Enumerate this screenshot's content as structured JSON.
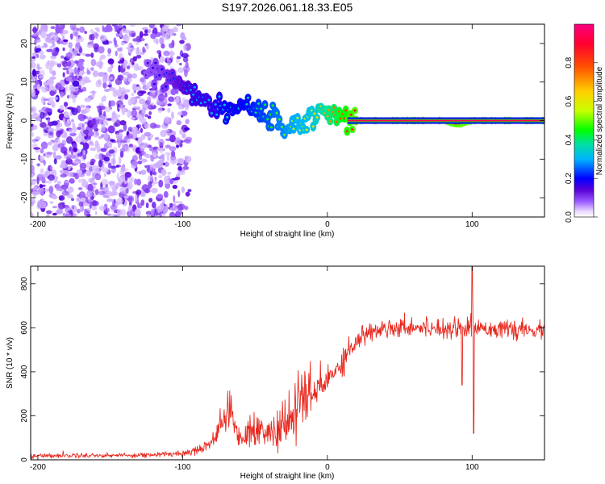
{
  "title": "S197.2026.061.18.33.E05",
  "chart_data": [
    {
      "type": "heatmap",
      "xlabel": "Height of straight line (km)",
      "ylabel": "Frequency (Hz)",
      "xlim": [
        -205,
        150
      ],
      "ylim": [
        -25,
        25
      ],
      "xticks": [
        -200,
        -100,
        0,
        100
      ],
      "yticks": [
        -20,
        -10,
        0,
        10,
        20
      ],
      "colorbar": {
        "label": "Normalized spectral amplitude",
        "range": [
          0,
          1
        ],
        "ticks": [
          "0.0",
          "0.2",
          "0.4",
          "0.6",
          "0.8"
        ],
        "tick_values": [
          0.0,
          0.2,
          0.4,
          0.6,
          0.8
        ],
        "colormap": [
          "#ffffff",
          "#e8d8ff",
          "#9a5cff",
          "#5a00d8",
          "#0000ff",
          "#00b4ff",
          "#00e0a0",
          "#00ff00",
          "#c8ff00",
          "#ffd000",
          "#ff5000",
          "#ff0030",
          "#ff0080"
        ],
        "colormap_stops": [
          0.0,
          0.03,
          0.08,
          0.14,
          0.2,
          0.3,
          0.38,
          0.45,
          0.55,
          0.65,
          0.78,
          0.9,
          1.0
        ]
      },
      "description_series": {
        "noise_region_x": [
          -205,
          -95
        ],
        "ridge": {
          "x": [
            -125,
            -110,
            -100,
            -90,
            -80,
            -70,
            -60,
            -50,
            -40,
            -30,
            -20,
            -10,
            0,
            10,
            20,
            60,
            80,
            90,
            100,
            130,
            150
          ],
          "freq_hz": [
            13,
            11,
            9,
            7,
            4,
            2,
            5,
            3,
            1,
            -2,
            -1,
            1,
            3,
            1,
            0,
            0,
            0,
            -1,
            0,
            0,
            0
          ],
          "amplitude": [
            0.15,
            0.2,
            0.25,
            0.3,
            0.3,
            0.35,
            0.35,
            0.4,
            0.45,
            0.5,
            0.55,
            0.6,
            0.7,
            0.8,
            0.9,
            0.9,
            0.9,
            0.9,
            0.9,
            0.9,
            0.9
          ]
        }
      }
    },
    {
      "type": "line",
      "xlabel": "Height of straight line (km)",
      "ylabel": "SNR (10 * v/v)",
      "xlim": [
        -205,
        150
      ],
      "ylim": [
        0,
        880
      ],
      "xticks": [
        -200,
        -100,
        0,
        100
      ],
      "yticks": [
        0,
        200,
        400,
        600,
        800
      ],
      "color": "#e8281e",
      "series": [
        {
          "name": "SNR",
          "x": [
            -205,
            -180,
            -150,
            -120,
            -100,
            -90,
            -80,
            -75,
            -70,
            -68,
            -65,
            -62,
            -60,
            -55,
            -50,
            -45,
            -40,
            -35,
            -30,
            -25,
            -20,
            -18,
            -15,
            -10,
            -5,
            0,
            5,
            10,
            15,
            20,
            25,
            30,
            35,
            40,
            50,
            60,
            70,
            80,
            90,
            92,
            95,
            98,
            100,
            101,
            102,
            103,
            105,
            110,
            120,
            130,
            140,
            150
          ],
          "mean": [
            18,
            20,
            20,
            22,
            30,
            45,
            80,
            140,
            200,
            230,
            180,
            120,
            100,
            120,
            140,
            130,
            120,
            130,
            150,
            180,
            250,
            320,
            270,
            300,
            330,
            360,
            400,
            450,
            500,
            540,
            565,
            580,
            590,
            600,
            605,
            605,
            600,
            600,
            600,
            610,
            590,
            600,
            610,
            600,
            590,
            600,
            605,
            600,
            595,
            590,
            585,
            590
          ],
          "spread": [
            10,
            10,
            10,
            10,
            15,
            20,
            30,
            50,
            70,
            80,
            60,
            40,
            40,
            60,
            80,
            70,
            60,
            80,
            100,
            120,
            150,
            150,
            120,
            100,
            80,
            70,
            60,
            60,
            50,
            45,
            45,
            40,
            40,
            40,
            40,
            40,
            40,
            40,
            40,
            40,
            40,
            40,
            40,
            40,
            40,
            40,
            40,
            40,
            35,
            35,
            35,
            35
          ]
        }
      ],
      "spikes": [
        {
          "x": 93,
          "y": 340
        },
        {
          "x": 100,
          "y": 880
        },
        {
          "x": 101,
          "y": 120
        }
      ]
    }
  ]
}
